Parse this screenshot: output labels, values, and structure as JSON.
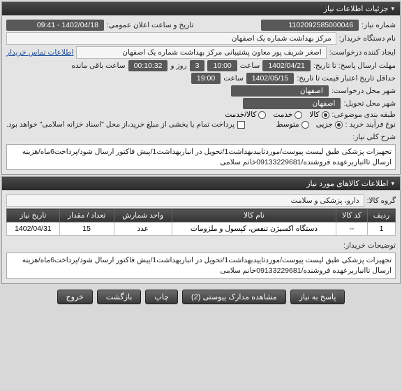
{
  "panels": {
    "need_info": {
      "title": "جزئیات اطلاعات نیاز",
      "labels": {
        "need_no": "شماره نیاز:",
        "announce": "تاریخ و ساعت اعلان عمومی:",
        "buyer_dev": "نام دستگاه خریدار:",
        "creator": "ایجاد کننده درخواست:",
        "contact": "اطلاعات تماس خریدار",
        "deadline": "مهلت ارسال پاسخ: تا تاریخ:",
        "hour": "ساعت",
        "days": "روز و",
        "remain": "ساعت باقی مانده",
        "cred_deadline": "حداقل تاریخ اعتبار قیمت تا تاریخ:",
        "req_city": "شهر محل درخواست:",
        "deliv_city": "شهر محل تحویل:",
        "pack": "طبقه بندی موضوعی:",
        "buy_process": "نوع فرآیند خرید :",
        "pay_note": "پرداخت تمام یا بخشی از مبلغ خرید،از محل \"اسناد خزانه اسلامی\" خواهد بود."
      },
      "values": {
        "need_no": "1102092585000046",
        "announce": "1402/04/18 - 09:41",
        "buyer_dev": "مرکز بهداشت شماره یک اصفهان",
        "creator": "اصغر شریف پور معاون پشتیبانی مرکز بهداشت شماره یک اصفهان",
        "deadline_date": "1402/04/21",
        "deadline_hour": "10:00",
        "days": "3",
        "remain": "00:10:32",
        "cred_date": "1402/05/15",
        "cred_hour": "19:00",
        "req_city": "اصفهان",
        "deliv_city": "اصفهان"
      },
      "pack_options": [
        "کالا",
        "خدمت",
        "کالا/خدمت"
      ],
      "pack_selected": 0,
      "process_options": [
        "جزیی",
        "متوسط"
      ],
      "process_selected": 0,
      "pay_checked": false
    },
    "desc": {
      "label": "شرح کلی نیاز:",
      "text": "تجهیزات پزشکی طبق لیست پیوست/موردتاییدبهداشت1/تحویل در انباربهداشت1/پیش فاکتور ارسال شود/پرداخت6ماه/هزینه ارسال تاانباربرعهده فروشنده/09133229681خانم سلامی"
    },
    "items": {
      "title": "اطلاعات کالاهای مورد نیاز",
      "group_label": "گروه کالا:",
      "group_value": "دارو، پزشکی و سلامت",
      "columns": [
        "ردیف",
        "کد کالا",
        "نام کالا",
        "واحد شمارش",
        "تعداد / مقدار",
        "تاریخ نیاز"
      ],
      "rows": [
        [
          "1",
          "--",
          "دستگاه اکسیژن تنفس، کپسول و ملزومات",
          "عدد",
          "15",
          "1402/04/31"
        ]
      ],
      "buyer_notes_label": "توضیحات خریدار:",
      "buyer_notes": "تجهیزات پزشکی طبق لیست پیوست/موردتاییدبهداشت1/تحویل در انباربهداشت1/پیش فاکتور ارسال شود/پرداخت6ماه/هزینه ارسال تاانباربرعهده فروشنده/09133229681خانم سلامی"
    }
  },
  "buttons": {
    "respond": "پاسخ به نیاز",
    "attachments": "مشاهده مدارک پیوستی (2)",
    "print": "چاپ",
    "back": "بازگشت",
    "exit": "خروج"
  }
}
